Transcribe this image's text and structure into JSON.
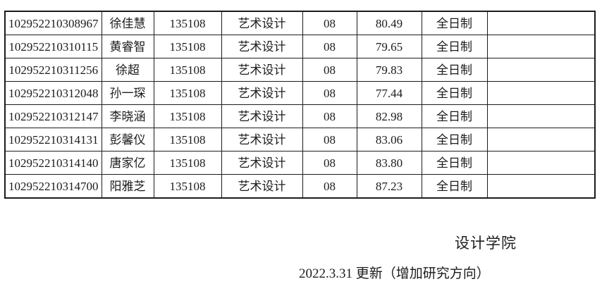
{
  "document": {
    "background": "#ffffff",
    "text_color": "#1c1c1c",
    "border_color": "#1c1c1c"
  },
  "table": {
    "column_keys": [
      "candidate_id",
      "name",
      "major_code",
      "major_name",
      "direction",
      "score",
      "study_type",
      "remark"
    ],
    "rows": [
      {
        "candidate_id": "102952210308967",
        "name": "徐佳慧",
        "major_code": "135108",
        "major_name": "艺术设计",
        "direction": "08",
        "score": "80.49",
        "study_type": "全日制",
        "remark": ""
      },
      {
        "candidate_id": "102952210310115",
        "name": "黄睿智",
        "major_code": "135108",
        "major_name": "艺术设计",
        "direction": "08",
        "score": "79.65",
        "study_type": "全日制",
        "remark": ""
      },
      {
        "candidate_id": "102952210311256",
        "name": "徐超",
        "major_code": "135108",
        "major_name": "艺术设计",
        "direction": "08",
        "score": "79.83",
        "study_type": "全日制",
        "remark": ""
      },
      {
        "candidate_id": "102952210312048",
        "name": "孙一琛",
        "major_code": "135108",
        "major_name": "艺术设计",
        "direction": "08",
        "score": "77.44",
        "study_type": "全日制",
        "remark": ""
      },
      {
        "candidate_id": "102952210312147",
        "name": "李晓涵",
        "major_code": "135108",
        "major_name": "艺术设计",
        "direction": "08",
        "score": "82.98",
        "study_type": "全日制",
        "remark": ""
      },
      {
        "candidate_id": "102952210314131",
        "name": "彭馨仪",
        "major_code": "135108",
        "major_name": "艺术设计",
        "direction": "08",
        "score": "83.06",
        "study_type": "全日制",
        "remark": ""
      },
      {
        "candidate_id": "102952210314140",
        "name": "唐家亿",
        "major_code": "135108",
        "major_name": "艺术设计",
        "direction": "08",
        "score": "83.80",
        "study_type": "全日制",
        "remark": ""
      },
      {
        "candidate_id": "102952210314700",
        "name": "阳雅芝",
        "major_code": "135108",
        "major_name": "艺术设计",
        "direction": "08",
        "score": "87.23",
        "study_type": "全日制",
        "remark": ""
      }
    ]
  },
  "footer": {
    "signature": "设计学院",
    "update_note": "2022.3.31 更新（增加研究方向）"
  }
}
